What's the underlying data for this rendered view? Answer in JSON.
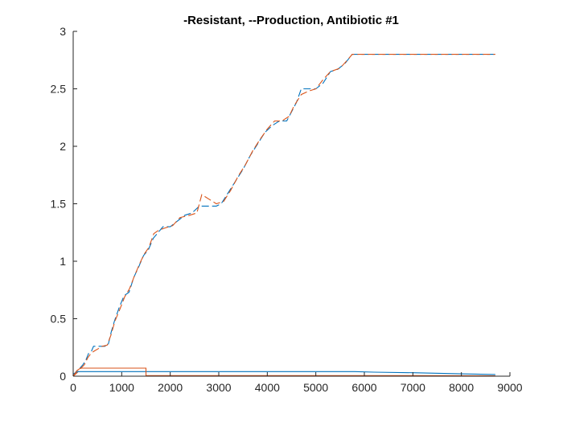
{
  "chart_data": {
    "type": "line",
    "title": "-Resistant, --Production, Antibiotic #1",
    "xlabel": "",
    "ylabel": "",
    "xlim": [
      0,
      9000
    ],
    "ylim": [
      0,
      3
    ],
    "xticks": [
      0,
      1000,
      2000,
      3000,
      4000,
      5000,
      6000,
      7000,
      8000,
      9000
    ],
    "yticks": [
      0,
      0.5,
      1,
      1.5,
      2,
      2.5,
      3
    ],
    "grid": false,
    "legend": "none",
    "series": [
      {
        "color": "#0072BD",
        "style": "dashed",
        "points": [
          [
            0,
            0
          ],
          [
            60,
            0.04
          ],
          [
            120,
            0.06
          ],
          [
            200,
            0.1
          ],
          [
            260,
            0.14
          ],
          [
            320,
            0.2
          ],
          [
            380,
            0.22
          ],
          [
            420,
            0.26
          ],
          [
            480,
            0.26
          ],
          [
            560,
            0.26
          ],
          [
            650,
            0.26
          ],
          [
            720,
            0.27
          ],
          [
            780,
            0.38
          ],
          [
            850,
            0.48
          ],
          [
            950,
            0.6
          ],
          [
            1050,
            0.7
          ],
          [
            1150,
            0.73
          ],
          [
            1250,
            0.86
          ],
          [
            1350,
            0.95
          ],
          [
            1450,
            1.05
          ],
          [
            1550,
            1.1
          ],
          [
            1650,
            1.2
          ],
          [
            1750,
            1.25
          ],
          [
            1850,
            1.3
          ],
          [
            2000,
            1.3
          ],
          [
            2150,
            1.35
          ],
          [
            2300,
            1.4
          ],
          [
            2450,
            1.42
          ],
          [
            2600,
            1.48
          ],
          [
            2750,
            1.48
          ],
          [
            2950,
            1.48
          ],
          [
            3050,
            1.5
          ],
          [
            3200,
            1.6
          ],
          [
            3350,
            1.7
          ],
          [
            3500,
            1.8
          ],
          [
            3650,
            1.92
          ],
          [
            3800,
            2.02
          ],
          [
            3950,
            2.12
          ],
          [
            4100,
            2.18
          ],
          [
            4250,
            2.22
          ],
          [
            4400,
            2.22
          ],
          [
            4500,
            2.3
          ],
          [
            4600,
            2.38
          ],
          [
            4700,
            2.5
          ],
          [
            4850,
            2.5
          ],
          [
            5000,
            2.5
          ],
          [
            5150,
            2.55
          ],
          [
            5300,
            2.65
          ],
          [
            5450,
            2.67
          ],
          [
            5600,
            2.72
          ],
          [
            5750,
            2.8
          ],
          [
            6000,
            2.8
          ],
          [
            7000,
            2.8
          ],
          [
            8000,
            2.8
          ],
          [
            8700,
            2.8
          ]
        ]
      },
      {
        "color": "#D95319",
        "style": "dashed",
        "points": [
          [
            0,
            0
          ],
          [
            80,
            0.03
          ],
          [
            160,
            0.07
          ],
          [
            230,
            0.1
          ],
          [
            300,
            0.16
          ],
          [
            370,
            0.2
          ],
          [
            440,
            0.22
          ],
          [
            520,
            0.24
          ],
          [
            600,
            0.26
          ],
          [
            700,
            0.27
          ],
          [
            780,
            0.36
          ],
          [
            860,
            0.48
          ],
          [
            960,
            0.58
          ],
          [
            1060,
            0.69
          ],
          [
            1160,
            0.76
          ],
          [
            1260,
            0.87
          ],
          [
            1360,
            0.97
          ],
          [
            1460,
            1.06
          ],
          [
            1560,
            1.12
          ],
          [
            1660,
            1.24
          ],
          [
            1760,
            1.27
          ],
          [
            1900,
            1.29
          ],
          [
            2050,
            1.31
          ],
          [
            2200,
            1.38
          ],
          [
            2400,
            1.4
          ],
          [
            2550,
            1.42
          ],
          [
            2650,
            1.58
          ],
          [
            2800,
            1.54
          ],
          [
            2950,
            1.5
          ],
          [
            3100,
            1.52
          ],
          [
            3250,
            1.62
          ],
          [
            3400,
            1.74
          ],
          [
            3550,
            1.84
          ],
          [
            3700,
            1.96
          ],
          [
            3850,
            2.06
          ],
          [
            4000,
            2.15
          ],
          [
            4150,
            2.22
          ],
          [
            4300,
            2.22
          ],
          [
            4450,
            2.26
          ],
          [
            4550,
            2.35
          ],
          [
            4700,
            2.45
          ],
          [
            4850,
            2.48
          ],
          [
            5000,
            2.5
          ],
          [
            5150,
            2.58
          ],
          [
            5300,
            2.65
          ],
          [
            5500,
            2.68
          ],
          [
            5650,
            2.75
          ],
          [
            5750,
            2.8
          ],
          [
            6500,
            2.8
          ],
          [
            7500,
            2.8
          ],
          [
            8700,
            2.8
          ]
        ]
      },
      {
        "color": "#0072BD",
        "style": "solid",
        "points": [
          [
            0,
            0.02
          ],
          [
            100,
            0.04
          ],
          [
            200,
            0.04
          ],
          [
            1000,
            0.04
          ],
          [
            2000,
            0.04
          ],
          [
            3000,
            0.04
          ],
          [
            4000,
            0.04
          ],
          [
            5000,
            0.04
          ],
          [
            5800,
            0.04
          ],
          [
            6200,
            0.035
          ],
          [
            7000,
            0.03
          ],
          [
            8000,
            0.02
          ],
          [
            8700,
            0.015
          ]
        ]
      },
      {
        "color": "#D95319",
        "style": "solid",
        "points": [
          [
            0,
            0
          ],
          [
            80,
            0.05
          ],
          [
            150,
            0.07
          ],
          [
            1000,
            0.07
          ],
          [
            1500,
            0.07
          ],
          [
            1500,
            0.005
          ],
          [
            3000,
            0.005
          ],
          [
            5000,
            0.005
          ],
          [
            7000,
            0.005
          ],
          [
            8700,
            0.003
          ]
        ]
      }
    ]
  }
}
